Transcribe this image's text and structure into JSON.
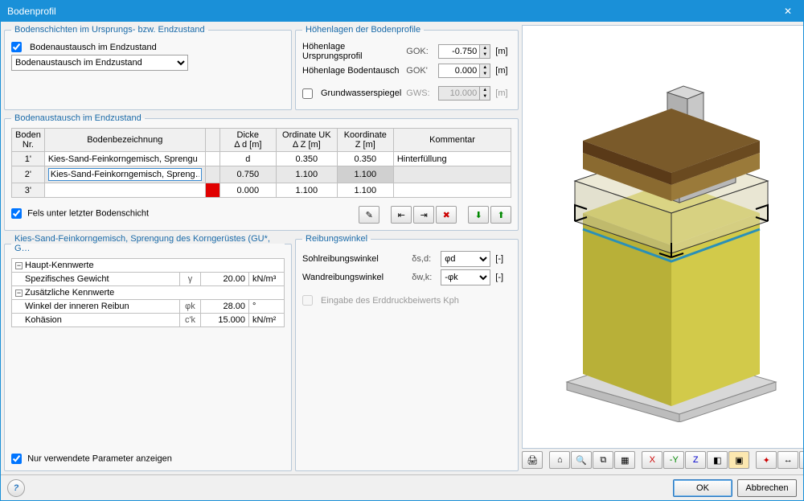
{
  "window": {
    "title": "Bodenprofil",
    "close": "✕"
  },
  "layers_group": {
    "legend": "Bodenschichten im Ursprungs- bzw. Endzustand",
    "checkbox_label": "Bodenaustausch im Endzustand",
    "checkbox_checked": true,
    "dropdown_value": "Bodenaustausch im Endzustand"
  },
  "levels_group": {
    "legend": "Höhenlagen der Bodenprofile",
    "row1": {
      "label": "Höhenlage Ursprungsprofil",
      "sym": "GOK:",
      "value": "-0.750",
      "unit": "[m]"
    },
    "row2": {
      "label": "Höhenlage Bodentausch",
      "sym": "GOK'",
      "value": "0.000",
      "unit": "[m]"
    },
    "gw_label": "Grundwasserspiegel",
    "gw_sym": "GWS:",
    "gw_value": "10.000",
    "gw_unit": "[m]",
    "gw_checked": false
  },
  "exchange_group": {
    "legend": "Bodenaustausch im Endzustand",
    "headers": {
      "nr": "Boden\nNr.",
      "bez": "Bodenbezeichnung",
      "blank": "",
      "dicke": "Dicke\nΔ d [m]",
      "ordinate": "Ordinate UK\nΔ Z [m]",
      "koord": "Koordinate\nZ [m]",
      "kommentar": "Kommentar"
    },
    "rows": [
      {
        "nr": "1'",
        "bez": "Kies-Sand-Feinkorngemisch, Sprengu",
        "color_flag": "",
        "dicke": "d",
        "ord": "0.350",
        "z": "0.350",
        "kom": "Hinterfüllung"
      },
      {
        "nr": "2'",
        "bez": "Kies-Sand-Feinkorngemisch, Spreng…",
        "color_flag": "",
        "dicke": "0.750",
        "ord": "1.100",
        "z": "1.100",
        "kom": "",
        "selected": true
      },
      {
        "nr": "3'",
        "bez": "",
        "color_flag": "red",
        "dicke": "0.000",
        "ord": "1.100",
        "z": "1.100",
        "kom": ""
      }
    ],
    "fels_label": "Fels unter letzter Bodenschicht",
    "fels_checked": true
  },
  "material_group": {
    "legend": "Kies-Sand-Feinkorngemisch, Sprengung des Korngerüstes (GU*, G…",
    "haupt": "Haupt-Kennwerte",
    "zusatz": "Zusätzliche Kennwerte",
    "params": [
      {
        "label": "Spezifisches Gewicht",
        "sym": "γ",
        "val": "20.00",
        "unit": "kN/m³"
      }
    ],
    "params2": [
      {
        "label": "Winkel der inneren Reibun",
        "sym": "φk",
        "val": "28.00",
        "unit": "°"
      },
      {
        "label": "Kohäsion",
        "sym": "c'k",
        "val": "15.000",
        "unit": "kN/m²"
      }
    ],
    "only_used_label": "Nur verwendete Parameter anzeigen",
    "only_used_checked": true
  },
  "friction_group": {
    "legend": "Reibungswinkel",
    "row1": {
      "label": "Sohlreibungswinkel",
      "sym": "δs,d:",
      "val": "φd",
      "unit": "[-]"
    },
    "row2": {
      "label": "Wandreibungswinkel",
      "sym": "δw,k:",
      "val": "-φk",
      "unit": "[-]"
    },
    "kph_label": "Eingabe des Erddruckbeiwerts Kph",
    "kph_checked": false
  },
  "model3d": {
    "colors": {
      "base": "#d8d8d8",
      "soil_top": "#7a5a2a",
      "soil_mid": "#9a7a3a",
      "soil_main": "#d2ca4a",
      "soil_main_dark": "#b8b038",
      "glass": "rgba(220,220,200,0.5)",
      "column": "#c0c0c0",
      "outline": "#202020",
      "water": "#2a90b8"
    }
  },
  "footer": {
    "ok": "OK",
    "cancel": "Abbrechen",
    "help": "?"
  },
  "icons": {
    "edit": "✎",
    "insert_before": "⇤",
    "insert_after": "⇥",
    "delete": "✖",
    "import": "⬇",
    "export": "⬆",
    "print": "🖨",
    "home": "⌂",
    "zoom": "🔍",
    "zoom_win": "⧉",
    "grid": "▦",
    "axis_x": "X",
    "axis_y": "-Y",
    "axis_z": "Z",
    "iso": "◧",
    "box": "▣",
    "arrows": "↔",
    "diag": "⤡",
    "compass": "✦"
  }
}
